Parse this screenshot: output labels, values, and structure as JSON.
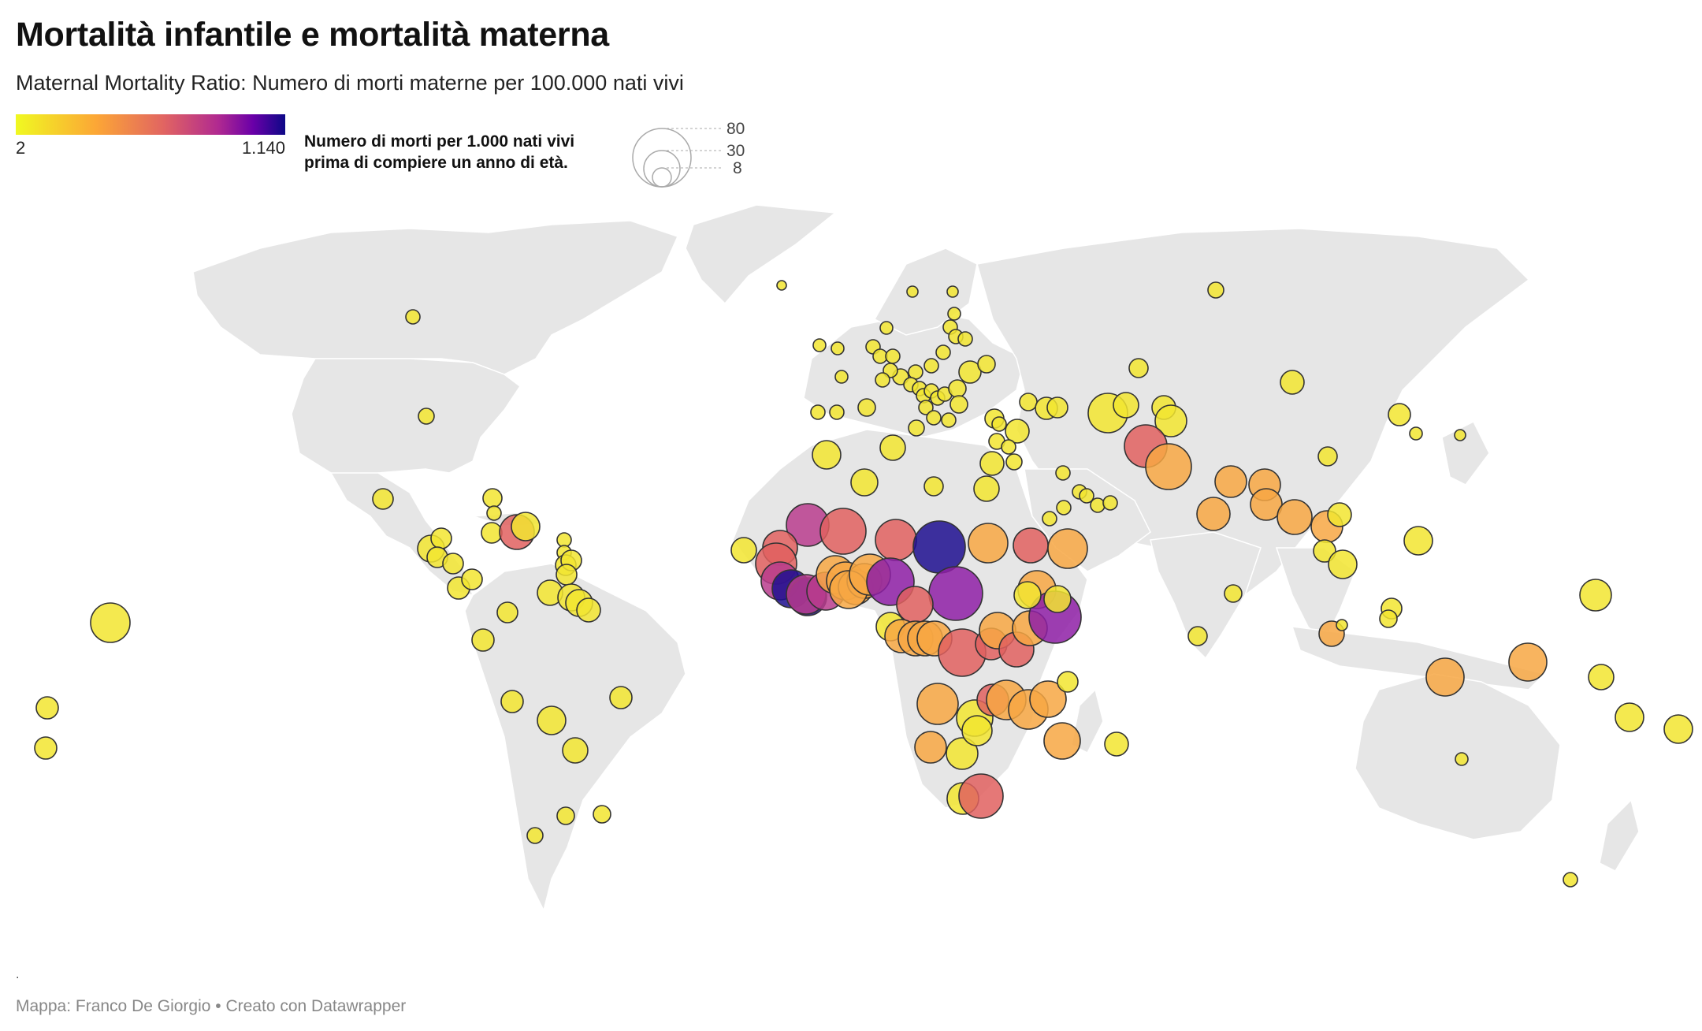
{
  "title": "Mortalità infantile e mortalità materna",
  "subtitle": "Maternal Mortality Ratio: Numero di morti materne per 100.000 nati vivi",
  "color_legend": {
    "min_label": "2",
    "max_label": "1.140",
    "stops": [
      "#f0f921",
      "#fca636",
      "#e16462",
      "#b12a90",
      "#6a00a8",
      "#0d0887"
    ]
  },
  "size_legend": {
    "title_line1": "Numero di morti per 1.000 nati vivi",
    "title_line2": "prima di compiere un anno di età.",
    "values": [
      "80",
      "30",
      "8"
    ]
  },
  "note": ".",
  "footer": "Mappa: Franco De Giorgio • Creato con Datawrapper",
  "colors": {
    "land": "#e6e6e6",
    "border": "#cccccc",
    "bubble_stroke": "#333333"
  }
}
